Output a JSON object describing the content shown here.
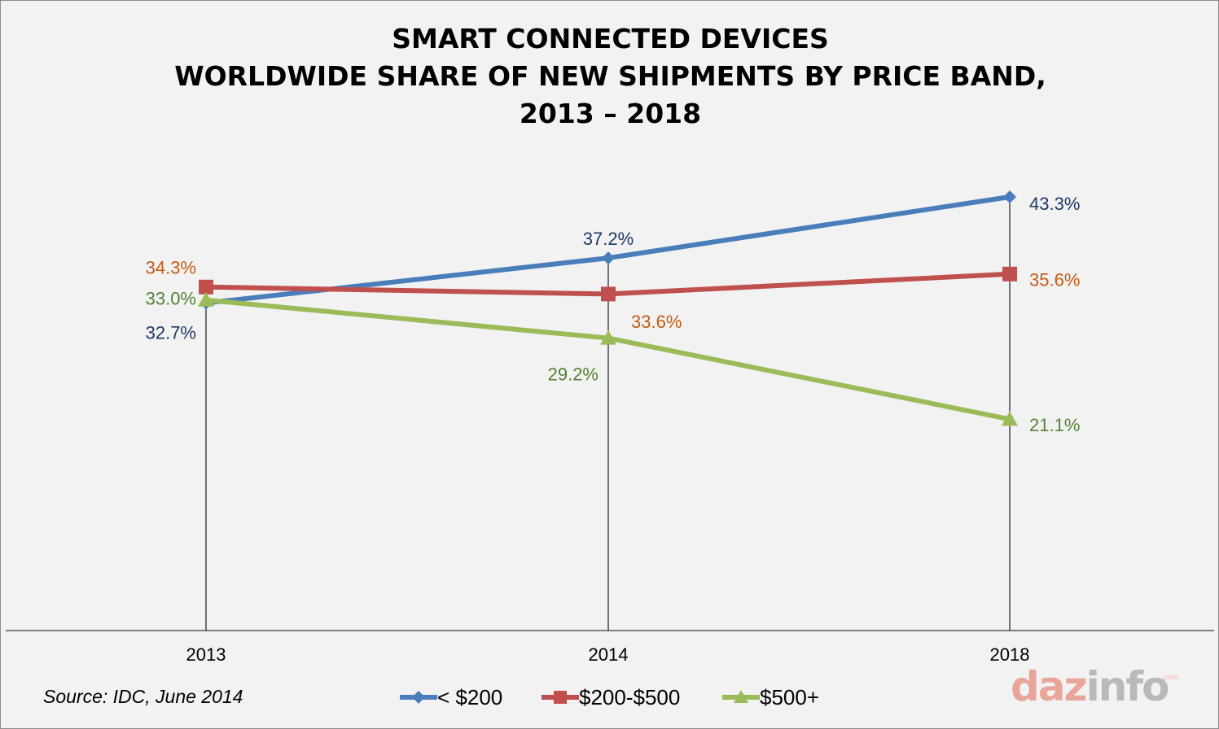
{
  "title_lines": [
    "SMART CONNECTED DEVICES",
    "WORLDWIDE SHARE OF NEW SHIPMENTS BY PRICE BAND,",
    "2013 – 2018"
  ],
  "source": "Source: IDC, June  2014",
  "logo": {
    "part1": "daz",
    "part2": "info",
    "domain": ".com",
    "color1": "#e8a59a",
    "color2": "#b9b9b9"
  },
  "chart_data": {
    "type": "line",
    "categories": [
      "2013",
      "2014",
      "2018"
    ],
    "ylim": [
      0,
      50
    ],
    "grid": false,
    "legend_position": "bottom",
    "series": [
      {
        "name": "< $200",
        "values": [
          32.7,
          37.2,
          43.3
        ],
        "labels": [
          "32.7%",
          "37.2%",
          "43.3%"
        ],
        "color": "#4a7ebb",
        "label_color": "#1f3864",
        "marker": "diamond"
      },
      {
        "name": "$200-$500",
        "values": [
          34.3,
          33.6,
          35.6
        ],
        "labels": [
          "34.3%",
          "33.6%",
          "35.6%"
        ],
        "color": "#c0504d",
        "label_color": "#c55a11",
        "marker": "square"
      },
      {
        "name": "$500+",
        "values": [
          33.0,
          29.2,
          21.1
        ],
        "labels": [
          "33.0%",
          "29.2%",
          "21.1%"
        ],
        "color": "#9bbb59",
        "label_color": "#548235",
        "marker": "triangle"
      }
    ]
  }
}
